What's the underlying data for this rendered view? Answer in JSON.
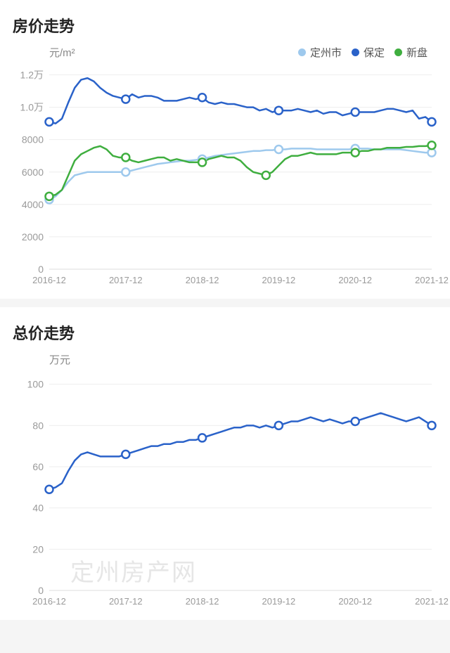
{
  "chart1": {
    "title": "房价走势",
    "y_unit": "元/m²",
    "type": "line",
    "background_color": "#ffffff",
    "grid_color": "#eeeeee",
    "axis_color": "#dddddd",
    "tick_color": "#9a9a9a",
    "title_fontsize": 22,
    "tick_fontsize": 14,
    "legend": [
      {
        "label": "定州市",
        "color": "#9ec9ed"
      },
      {
        "label": "保定",
        "color": "#2a62c9"
      },
      {
        "label": "新盘",
        "color": "#3fae3f"
      }
    ],
    "x_labels": [
      "2016-12",
      "2017-12",
      "2018-12",
      "2019-12",
      "2020-12",
      "2021-12"
    ],
    "x_range": [
      0,
      60
    ],
    "y_ticks": [
      {
        "v": 0,
        "label": "0"
      },
      {
        "v": 2000,
        "label": "2000"
      },
      {
        "v": 4000,
        "label": "4000"
      },
      {
        "v": 6000,
        "label": "6000"
      },
      {
        "v": 8000,
        "label": "8000"
      },
      {
        "v": 10000,
        "label": "1.0万"
      },
      {
        "v": 12000,
        "label": "1.2万"
      }
    ],
    "y_range": [
      0,
      12500
    ],
    "series": [
      {
        "name": "保定",
        "color": "#2a62c9",
        "points": [
          [
            0,
            9100
          ],
          [
            1,
            9000
          ],
          [
            2,
            9300
          ],
          [
            3,
            10300
          ],
          [
            4,
            11200
          ],
          [
            5,
            11700
          ],
          [
            6,
            11800
          ],
          [
            7,
            11600
          ],
          [
            8,
            11200
          ],
          [
            9,
            10900
          ],
          [
            10,
            10700
          ],
          [
            11,
            10600
          ],
          [
            12,
            10500
          ],
          [
            13,
            10800
          ],
          [
            14,
            10600
          ],
          [
            15,
            10700
          ],
          [
            16,
            10700
          ],
          [
            17,
            10600
          ],
          [
            18,
            10400
          ],
          [
            19,
            10400
          ],
          [
            20,
            10400
          ],
          [
            21,
            10500
          ],
          [
            22,
            10600
          ],
          [
            23,
            10500
          ],
          [
            24,
            10600
          ],
          [
            25,
            10300
          ],
          [
            26,
            10200
          ],
          [
            27,
            10300
          ],
          [
            28,
            10200
          ],
          [
            29,
            10200
          ],
          [
            30,
            10100
          ],
          [
            31,
            10000
          ],
          [
            32,
            10000
          ],
          [
            33,
            9800
          ],
          [
            34,
            9900
          ],
          [
            35,
            9700
          ],
          [
            36,
            9800
          ],
          [
            37,
            9800
          ],
          [
            38,
            9800
          ],
          [
            39,
            9900
          ],
          [
            40,
            9800
          ],
          [
            41,
            9700
          ],
          [
            42,
            9800
          ],
          [
            43,
            9600
          ],
          [
            44,
            9700
          ],
          [
            45,
            9700
          ],
          [
            46,
            9500
          ],
          [
            47,
            9600
          ],
          [
            48,
            9700
          ],
          [
            49,
            9700
          ],
          [
            50,
            9700
          ],
          [
            51,
            9700
          ],
          [
            52,
            9800
          ],
          [
            53,
            9900
          ],
          [
            54,
            9900
          ],
          [
            55,
            9800
          ],
          [
            56,
            9700
          ],
          [
            57,
            9800
          ],
          [
            58,
            9300
          ],
          [
            59,
            9400
          ],
          [
            60,
            9100
          ]
        ],
        "markers": [
          [
            0,
            9100
          ],
          [
            12,
            10500
          ],
          [
            24,
            10600
          ],
          [
            36,
            9800
          ],
          [
            48,
            9700
          ],
          [
            60,
            9100
          ]
        ]
      },
      {
        "name": "定州市",
        "color": "#9ec9ed",
        "points": [
          [
            0,
            4300
          ],
          [
            1,
            4500
          ],
          [
            2,
            4900
          ],
          [
            3,
            5400
          ],
          [
            4,
            5800
          ],
          [
            5,
            5900
          ],
          [
            6,
            6000
          ],
          [
            7,
            6000
          ],
          [
            8,
            6000
          ],
          [
            9,
            6000
          ],
          [
            10,
            6000
          ],
          [
            11,
            6000
          ],
          [
            12,
            6000
          ],
          [
            13,
            6100
          ],
          [
            14,
            6200
          ],
          [
            15,
            6300
          ],
          [
            16,
            6400
          ],
          [
            17,
            6500
          ],
          [
            18,
            6550
          ],
          [
            19,
            6600
          ],
          [
            20,
            6650
          ],
          [
            21,
            6700
          ],
          [
            22,
            6700
          ],
          [
            23,
            6750
          ],
          [
            24,
            6800
          ],
          [
            25,
            6900
          ],
          [
            26,
            7000
          ],
          [
            27,
            7050
          ],
          [
            28,
            7100
          ],
          [
            29,
            7150
          ],
          [
            30,
            7200
          ],
          [
            31,
            7250
          ],
          [
            32,
            7300
          ],
          [
            33,
            7300
          ],
          [
            34,
            7350
          ],
          [
            35,
            7350
          ],
          [
            36,
            7400
          ],
          [
            37,
            7400
          ],
          [
            38,
            7450
          ],
          [
            39,
            7450
          ],
          [
            40,
            7450
          ],
          [
            41,
            7450
          ],
          [
            42,
            7400
          ],
          [
            43,
            7400
          ],
          [
            44,
            7400
          ],
          [
            45,
            7400
          ],
          [
            46,
            7400
          ],
          [
            47,
            7400
          ],
          [
            48,
            7450
          ],
          [
            49,
            7450
          ],
          [
            50,
            7450
          ],
          [
            51,
            7400
          ],
          [
            52,
            7400
          ],
          [
            53,
            7400
          ],
          [
            54,
            7400
          ],
          [
            55,
            7400
          ],
          [
            56,
            7350
          ],
          [
            57,
            7300
          ],
          [
            58,
            7250
          ],
          [
            59,
            7200
          ],
          [
            60,
            7200
          ]
        ],
        "markers": [
          [
            0,
            4300
          ],
          [
            12,
            6000
          ],
          [
            24,
            6800
          ],
          [
            36,
            7400
          ],
          [
            48,
            7450
          ],
          [
            60,
            7200
          ]
        ]
      },
      {
        "name": "新盘",
        "color": "#3fae3f",
        "points": [
          [
            0,
            4500
          ],
          [
            1,
            4600
          ],
          [
            2,
            4900
          ],
          [
            3,
            5800
          ],
          [
            4,
            6700
          ],
          [
            5,
            7100
          ],
          [
            6,
            7300
          ],
          [
            7,
            7500
          ],
          [
            8,
            7600
          ],
          [
            9,
            7400
          ],
          [
            10,
            7000
          ],
          [
            11,
            6900
          ],
          [
            12,
            6900
          ],
          [
            13,
            6700
          ],
          [
            14,
            6600
          ],
          [
            15,
            6700
          ],
          [
            16,
            6800
          ],
          [
            17,
            6900
          ],
          [
            18,
            6900
          ],
          [
            19,
            6700
          ],
          [
            20,
            6800
          ],
          [
            21,
            6700
          ],
          [
            22,
            6600
          ],
          [
            23,
            6600
          ],
          [
            24,
            6600
          ],
          [
            25,
            6800
          ],
          [
            26,
            6900
          ],
          [
            27,
            7000
          ],
          [
            28,
            6900
          ],
          [
            29,
            6900
          ],
          [
            30,
            6700
          ],
          [
            31,
            6300
          ],
          [
            32,
            6000
          ],
          [
            33,
            5900
          ],
          [
            34,
            5800
          ],
          [
            35,
            6000
          ],
          [
            36,
            6400
          ],
          [
            37,
            6800
          ],
          [
            38,
            7000
          ],
          [
            39,
            7000
          ],
          [
            40,
            7100
          ],
          [
            41,
            7200
          ],
          [
            42,
            7100
          ],
          [
            43,
            7100
          ],
          [
            44,
            7100
          ],
          [
            45,
            7100
          ],
          [
            46,
            7200
          ],
          [
            47,
            7200
          ],
          [
            48,
            7200
          ],
          [
            49,
            7300
          ],
          [
            50,
            7300
          ],
          [
            51,
            7400
          ],
          [
            52,
            7400
          ],
          [
            53,
            7500
          ],
          [
            54,
            7500
          ],
          [
            55,
            7500
          ],
          [
            56,
            7550
          ],
          [
            57,
            7550
          ],
          [
            58,
            7600
          ],
          [
            59,
            7600
          ],
          [
            60,
            7650
          ]
        ],
        "markers": [
          [
            0,
            4500
          ],
          [
            12,
            6900
          ],
          [
            24,
            6600
          ],
          [
            34,
            5800
          ],
          [
            48,
            7200
          ],
          [
            60,
            7650
          ]
        ]
      }
    ]
  },
  "chart2": {
    "title": "总价走势",
    "y_unit": "万元",
    "type": "line",
    "background_color": "#ffffff",
    "grid_color": "#eeeeee",
    "axis_color": "#dddddd",
    "tick_color": "#9a9a9a",
    "x_labels": [
      "2016-12",
      "2017-12",
      "2018-12",
      "2019-12",
      "2020-12",
      "2021-12"
    ],
    "x_range": [
      0,
      60
    ],
    "y_ticks": [
      {
        "v": 0,
        "label": "0"
      },
      {
        "v": 20,
        "label": "20"
      },
      {
        "v": 40,
        "label": "40"
      },
      {
        "v": 60,
        "label": "60"
      },
      {
        "v": 80,
        "label": "80"
      },
      {
        "v": 100,
        "label": "100"
      }
    ],
    "y_range": [
      0,
      105
    ],
    "series": [
      {
        "name": "保定",
        "color": "#2a62c9",
        "points": [
          [
            0,
            49
          ],
          [
            1,
            50
          ],
          [
            2,
            52
          ],
          [
            3,
            58
          ],
          [
            4,
            63
          ],
          [
            5,
            66
          ],
          [
            6,
            67
          ],
          [
            7,
            66
          ],
          [
            8,
            65
          ],
          [
            9,
            65
          ],
          [
            10,
            65
          ],
          [
            11,
            65
          ],
          [
            12,
            66
          ],
          [
            13,
            67
          ],
          [
            14,
            68
          ],
          [
            15,
            69
          ],
          [
            16,
            70
          ],
          [
            17,
            70
          ],
          [
            18,
            71
          ],
          [
            19,
            71
          ],
          [
            20,
            72
          ],
          [
            21,
            72
          ],
          [
            22,
            73
          ],
          [
            23,
            73
          ],
          [
            24,
            74
          ],
          [
            25,
            75
          ],
          [
            26,
            76
          ],
          [
            27,
            77
          ],
          [
            28,
            78
          ],
          [
            29,
            79
          ],
          [
            30,
            79
          ],
          [
            31,
            80
          ],
          [
            32,
            80
          ],
          [
            33,
            79
          ],
          [
            34,
            80
          ],
          [
            35,
            79
          ],
          [
            36,
            80
          ],
          [
            37,
            81
          ],
          [
            38,
            82
          ],
          [
            39,
            82
          ],
          [
            40,
            83
          ],
          [
            41,
            84
          ],
          [
            42,
            83
          ],
          [
            43,
            82
          ],
          [
            44,
            83
          ],
          [
            45,
            82
          ],
          [
            46,
            81
          ],
          [
            47,
            82
          ],
          [
            48,
            82
          ],
          [
            49,
            83
          ],
          [
            50,
            84
          ],
          [
            51,
            85
          ],
          [
            52,
            86
          ],
          [
            53,
            85
          ],
          [
            54,
            84
          ],
          [
            55,
            83
          ],
          [
            56,
            82
          ],
          [
            57,
            83
          ],
          [
            58,
            84
          ],
          [
            59,
            82
          ],
          [
            60,
            80
          ]
        ],
        "markers": [
          [
            0,
            49
          ],
          [
            12,
            66
          ],
          [
            24,
            74
          ],
          [
            36,
            80
          ],
          [
            48,
            82
          ],
          [
            60,
            80
          ]
        ]
      }
    ],
    "watermark": "定州房产网"
  }
}
